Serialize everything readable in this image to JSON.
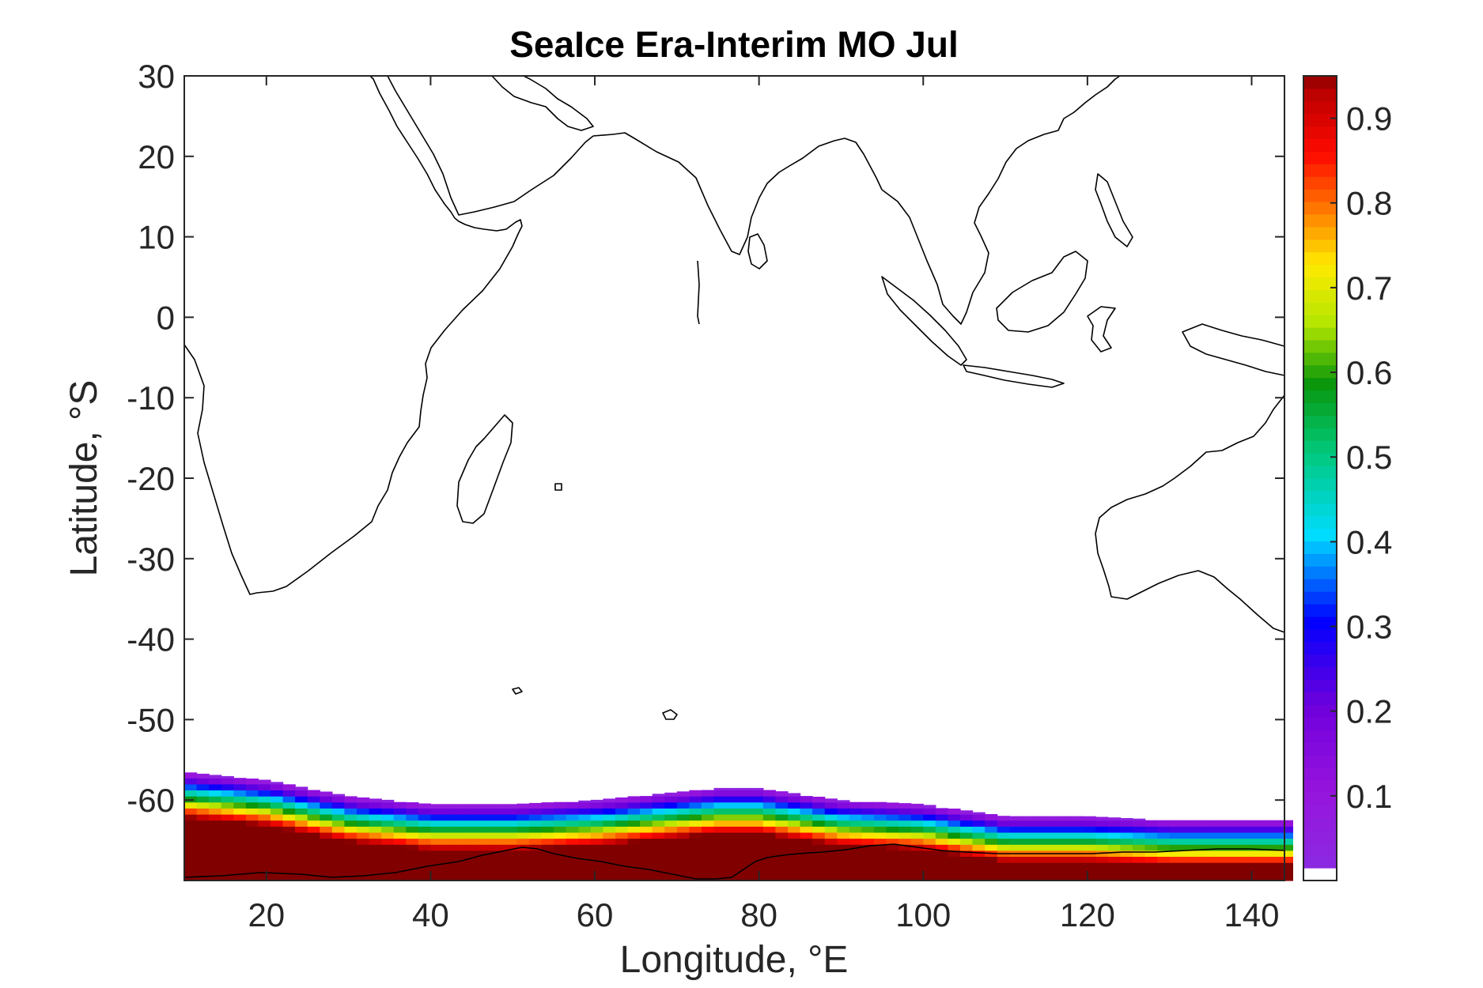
{
  "chart_data": {
    "type": "heatmap",
    "title": "SeaIce Era-Interim MO Jul",
    "xlabel": "Longitude, °E",
    "ylabel": "Latitude, °S",
    "xlim": [
      10,
      144
    ],
    "ylim": [
      -70,
      30
    ],
    "x_ticks": [
      20,
      40,
      60,
      80,
      100,
      120,
      140
    ],
    "x_tick_labels": [
      "20",
      "40",
      "60",
      "80",
      "100",
      "120",
      "140"
    ],
    "y_ticks": [
      30,
      20,
      10,
      0,
      -10,
      -20,
      -30,
      -40,
      -50,
      -60
    ],
    "y_tick_labels": [
      "30",
      "20",
      "10",
      "0",
      "-10",
      "-20",
      "-30",
      "-40",
      "-50",
      "-60"
    ],
    "colorbar": {
      "colormap": "jet-like (white, purple, blue, cyan, green, yellow, orange, red, dark red)",
      "range": [
        0,
        0.95
      ],
      "ticks": [
        0.1,
        0.2,
        0.3,
        0.4,
        0.5,
        0.6,
        0.7,
        0.8,
        0.9
      ],
      "tick_labels": [
        "0.1",
        "0.2",
        "0.3",
        "0.4",
        "0.5",
        "0.6",
        "0.7",
        "0.8",
        "0.9"
      ]
    },
    "sea_ice_edge": {
      "description": "Northern latitude of sea-ice concentration band (>0) by longitude; concentration increases southward to ~0.95",
      "longitude": [
        10,
        20,
        30,
        40,
        50,
        60,
        70,
        75,
        80,
        90,
        100,
        110,
        120,
        130,
        140,
        144
      ],
      "edge_latitude": [
        -56.5,
        -57.5,
        -59.5,
        -60.5,
        -60.5,
        -60.0,
        -59.0,
        -58.5,
        -58.5,
        -60.0,
        -60.5,
        -62.0,
        -62.0,
        -62.5,
        -62.5,
        -62.5
      ]
    }
  }
}
